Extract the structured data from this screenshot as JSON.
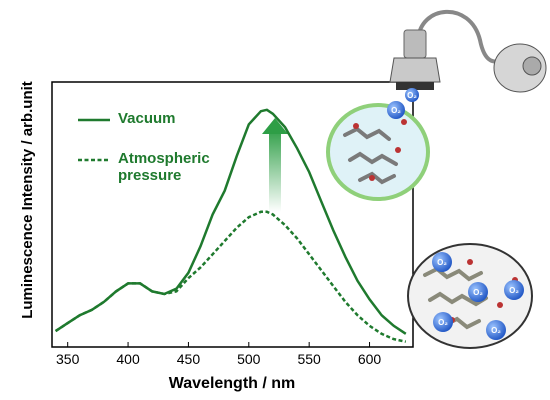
{
  "chart_data": {
    "type": "line",
    "x_label": "Wavelength / nm",
    "y_label": "Luminescence Intensity / arb.unit",
    "x": [
      340,
      350,
      360,
      370,
      380,
      390,
      400,
      410,
      420,
      430,
      440,
      450,
      460,
      470,
      480,
      490,
      500,
      510,
      515,
      520,
      530,
      540,
      550,
      560,
      570,
      580,
      590,
      600,
      610,
      620,
      630
    ],
    "series": [
      {
        "name": "Vacuum",
        "color": "#1f7a2e",
        "style": "solid",
        "values": [
          6,
          9,
          12,
          14,
          17,
          21,
          24,
          24,
          21,
          20,
          22,
          28,
          38,
          50,
          59,
          72,
          84,
          89,
          89.5,
          88,
          83,
          75,
          66,
          55,
          44,
          34,
          25,
          18,
          12,
          8,
          5
        ]
      },
      {
        "name": "Atmospheric pressure",
        "color": "#1f7a2e",
        "style": "dashed",
        "values": [
          6,
          9,
          12,
          14,
          17,
          21,
          24,
          24,
          21,
          20,
          21,
          26,
          30,
          35,
          40,
          45,
          49,
          51,
          51,
          50,
          46,
          41,
          35,
          29,
          23,
          17,
          12,
          8,
          5,
          3,
          2
        ]
      }
    ],
    "xlim": [
      337,
      636
    ],
    "ylim": [
      0,
      100
    ],
    "xticks": [
      350,
      400,
      450,
      500,
      550,
      600
    ],
    "o2_label": "O₂"
  }
}
